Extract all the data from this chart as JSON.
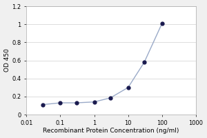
{
  "x_values": [
    0.03,
    0.1,
    0.3,
    1,
    3,
    10,
    30,
    100
  ],
  "y_values": [
    0.11,
    0.13,
    0.13,
    0.14,
    0.185,
    0.3,
    0.58,
    1.01
  ],
  "xlabel": "Recombinant Protein Concentration (ng/ml)",
  "ylabel": "OD 450",
  "xlim": [
    0.01,
    1000
  ],
  "ylim": [
    0,
    1.2
  ],
  "yticks": [
    0,
    0.2,
    0.4,
    0.6,
    0.8,
    1.0,
    1.2
  ],
  "ytick_labels": [
    "0",
    "0.2",
    "0.4",
    "0.6",
    "0.8",
    "1",
    "1.2"
  ],
  "xtick_labels": [
    "0.01",
    "0.1",
    "1",
    "10",
    "100",
    "1000"
  ],
  "xtick_values": [
    0.01,
    0.1,
    1,
    10,
    100,
    1000
  ],
  "line_color": "#9aaac8",
  "marker_color": "#1a1a4e",
  "bg_color": "#f0f0f0",
  "plot_bg_color": "#ffffff",
  "grid_color": "#d8d8d8",
  "font_size_label": 6.5,
  "font_size_tick": 6,
  "marker_size": 3.5,
  "line_width": 1.0
}
